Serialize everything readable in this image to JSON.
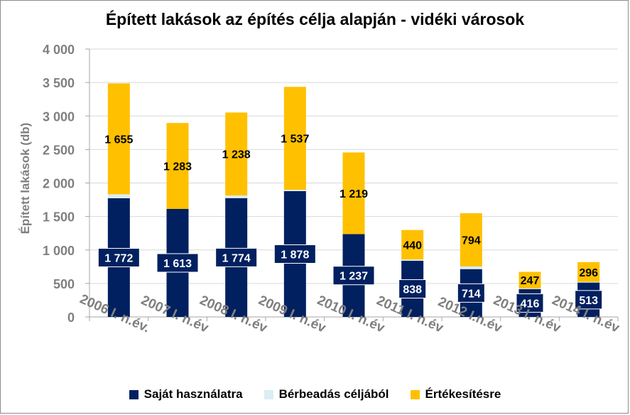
{
  "chart_data": {
    "type": "bar",
    "stacked": true,
    "title": "Épített lakások az építés célja alapján - vidéki városok",
    "xlabel": "",
    "ylabel": "Épített lakások (db)",
    "ylim": [
      0,
      4000
    ],
    "yticks": [
      "0",
      "500",
      "1 000",
      "1 500",
      "2 000",
      "2 500",
      "3 000",
      "3 500",
      "4 000"
    ],
    "ytick_values": [
      0,
      500,
      1000,
      1500,
      2000,
      2500,
      3000,
      3500,
      4000
    ],
    "grid": true,
    "legend_position": "bottom",
    "categories": [
      "2006 I. n.év.",
      "2007 I. n.év",
      "2008 I. n.év",
      "2009 I. n.év",
      "2010 I. n.év",
      "2011 I. n.év",
      "2012 I.n.év",
      "2013 I. n.év",
      "2014 I. n.év"
    ],
    "series": [
      {
        "name": "Saját használatra",
        "color": "#002060",
        "values": [
          1772,
          1613,
          1774,
          1878,
          1237,
          838,
          714,
          416,
          513
        ],
        "labels": [
          "1 772",
          "1 613",
          "1 774",
          "1 878",
          "1 237",
          "838",
          "714",
          "416",
          "513"
        ]
      },
      {
        "name": "Bérbeadás céljából",
        "color": "#dbeef4",
        "values": [
          60,
          0,
          40,
          20,
          0,
          20,
          40,
          10,
          10
        ],
        "labels": []
      },
      {
        "name": "Értékesítésre",
        "color": "#ffc000",
        "values": [
          1655,
          1283,
          1238,
          1537,
          1219,
          440,
          794,
          247,
          296
        ],
        "labels": [
          "1 655",
          "1 283",
          "1 238",
          "1 537",
          "1 219",
          "440",
          "794",
          "247",
          "296"
        ]
      }
    ]
  }
}
